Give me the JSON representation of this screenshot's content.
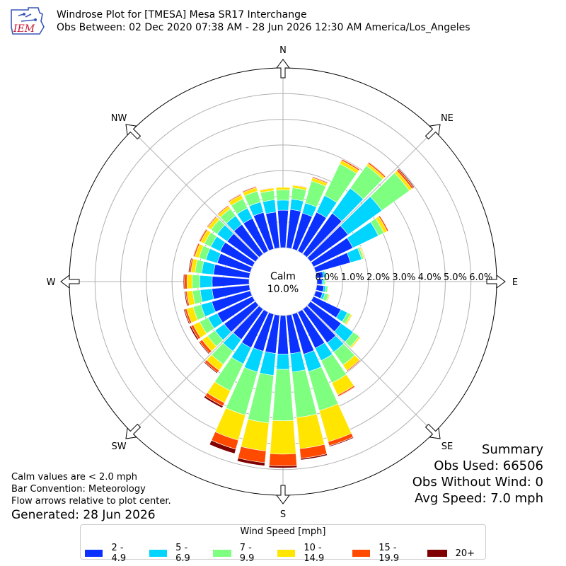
{
  "header": {
    "logo_text": "IEM",
    "title_line1": "Windrose Plot for [TMESA] Mesa SR17 Interchange",
    "title_line2": "Obs Between: 02 Dec 2020 07:38 AM - 28 Jun 2026 12:30 AM America/Los_Angeles"
  },
  "notes": {
    "calm_note": "Calm values are < 2.0 mph",
    "bar_convention": "Bar Convention: Meteorology",
    "flow_note": "Flow arrows relative to plot center.",
    "generated": "Generated: 28 Jun 2026"
  },
  "summary": {
    "title": "Summary",
    "obs_used": "Obs Used: 66506",
    "obs_without_wind": "Obs Without Wind: 0",
    "avg_speed": "Avg Speed: 7.0 mph"
  },
  "legend": {
    "title": "Wind Speed [mph]"
  },
  "chart_data": {
    "type": "windrose",
    "calm_label": "Calm",
    "calm_value": "10.0%",
    "calm_percent": 10.0,
    "radial_ticks": [
      "0.0%",
      "1.0%",
      "2.0%",
      "3.0%",
      "4.0%",
      "5.0%",
      "6.0%"
    ],
    "radial_max": 7.0,
    "compass": [
      "N",
      "NE",
      "E",
      "SE",
      "S",
      "SW",
      "W",
      "NW"
    ],
    "bins": [
      {
        "label": "2 - 4.9",
        "color": "#0a31ff"
      },
      {
        "label": "5 - 6.9",
        "color": "#00d5ff"
      },
      {
        "label": "7 - 9.9",
        "color": "#7fff7f"
      },
      {
        "label": "10 - 14.9",
        "color": "#ffe500"
      },
      {
        "label": "15 - 19.9",
        "color": "#ff4a00"
      },
      {
        "label": "20+",
        "color": "#7f0000"
      }
    ],
    "directions": [
      {
        "deg": 0,
        "values": [
          1.46,
          0.39,
          0.4,
          0.1,
          0.0,
          0.0
        ]
      },
      {
        "deg": 10,
        "values": [
          1.5,
          0.41,
          0.44,
          0.1,
          0.02,
          0.0
        ]
      },
      {
        "deg": 20,
        "values": [
          1.45,
          0.41,
          0.89,
          0.12,
          0.04,
          0.02
        ]
      },
      {
        "deg": 30,
        "values": [
          1.68,
          0.72,
          1.37,
          0.14,
          0.06,
          0.02
        ]
      },
      {
        "deg": 40,
        "values": [
          1.96,
          1.2,
          1.08,
          0.1,
          0.06,
          0.02
        ]
      },
      {
        "deg": 50,
        "values": [
          1.8,
          1.62,
          1.32,
          0.12,
          0.08,
          0.04
        ]
      },
      {
        "deg": 60,
        "values": [
          1.7,
          1.1,
          0.24,
          0.14,
          0.06,
          0.01
        ]
      },
      {
        "deg": 70,
        "values": [
          1.41,
          0.45,
          0.08,
          0.04,
          0.02,
          0.0
        ]
      },
      {
        "deg": 80,
        "values": [
          0.26,
          0.08,
          0.04,
          0.02,
          0.0,
          0.0
        ]
      },
      {
        "deg": 90,
        "values": [
          0.2,
          0.07,
          0.06,
          0.02,
          0.0,
          0.0
        ]
      },
      {
        "deg": 100,
        "values": [
          0.28,
          0.08,
          0.08,
          0.02,
          0.0,
          0.0
        ]
      },
      {
        "deg": 110,
        "values": [
          0.28,
          0.1,
          0.14,
          0.04,
          0.02,
          0.0
        ]
      },
      {
        "deg": 120,
        "values": [
          1.18,
          0.28,
          0.14,
          0.06,
          0.02,
          0.0
        ]
      },
      {
        "deg": 130,
        "values": [
          1.47,
          0.58,
          0.28,
          0.06,
          0.02,
          0.0
        ]
      },
      {
        "deg": 140,
        "values": [
          1.62,
          0.44,
          0.62,
          0.26,
          0.04,
          0.0
        ]
      },
      {
        "deg": 150,
        "values": [
          1.56,
          0.54,
          0.96,
          0.52,
          0.06,
          0.02
        ]
      },
      {
        "deg": 160,
        "values": [
          1.62,
          0.7,
          1.58,
          1.26,
          0.16,
          0.04
        ]
      },
      {
        "deg": 170,
        "values": [
          1.5,
          0.72,
          1.78,
          1.22,
          0.38,
          0.06
        ]
      },
      {
        "deg": 180,
        "values": [
          1.5,
          0.6,
          2.0,
          1.3,
          0.46,
          0.08
        ]
      },
      {
        "deg": 190,
        "values": [
          1.49,
          0.86,
          1.86,
          1.1,
          0.46,
          0.12
        ]
      },
      {
        "deg": 200,
        "values": [
          1.5,
          0.84,
          1.74,
          1.02,
          0.36,
          0.18
        ]
      },
      {
        "deg": 210,
        "values": [
          1.54,
          0.7,
          1.16,
          0.52,
          0.14,
          0.08
        ]
      },
      {
        "deg": 220,
        "values": [
          1.46,
          0.56,
          0.64,
          0.28,
          0.1,
          0.04
        ]
      },
      {
        "deg": 230,
        "values": [
          1.5,
          0.44,
          0.36,
          0.26,
          0.12,
          0.04
        ]
      },
      {
        "deg": 240,
        "values": [
          1.52,
          0.4,
          0.36,
          0.28,
          0.1,
          0.06
        ]
      },
      {
        "deg": 250,
        "values": [
          1.56,
          0.44,
          0.32,
          0.26,
          0.08,
          0.04
        ]
      },
      {
        "deg": 260,
        "values": [
          1.46,
          0.46,
          0.3,
          0.22,
          0.06,
          0.04
        ]
      },
      {
        "deg": 270,
        "values": [
          1.44,
          0.48,
          0.3,
          0.2,
          0.1,
          0.04
        ]
      },
      {
        "deg": 280,
        "values": [
          1.4,
          0.46,
          0.26,
          0.16,
          0.06,
          0.04
        ]
      },
      {
        "deg": 290,
        "values": [
          1.34,
          0.46,
          0.28,
          0.16,
          0.06,
          0.02
        ]
      },
      {
        "deg": 300,
        "values": [
          1.4,
          0.4,
          0.28,
          0.16,
          0.06,
          0.02
        ]
      },
      {
        "deg": 310,
        "values": [
          1.36,
          0.48,
          0.3,
          0.14,
          0.04,
          0.02
        ]
      },
      {
        "deg": 320,
        "values": [
          1.42,
          0.42,
          0.34,
          0.12,
          0.04,
          0.0
        ]
      },
      {
        "deg": 330,
        "values": [
          1.42,
          0.44,
          0.4,
          0.16,
          0.04,
          0.02
        ]
      },
      {
        "deg": 340,
        "values": [
          1.48,
          0.42,
          0.44,
          0.14,
          0.04,
          0.02
        ]
      },
      {
        "deg": 350,
        "values": [
          1.4,
          0.48,
          0.36,
          0.1,
          0.02,
          0.0
        ]
      }
    ]
  }
}
